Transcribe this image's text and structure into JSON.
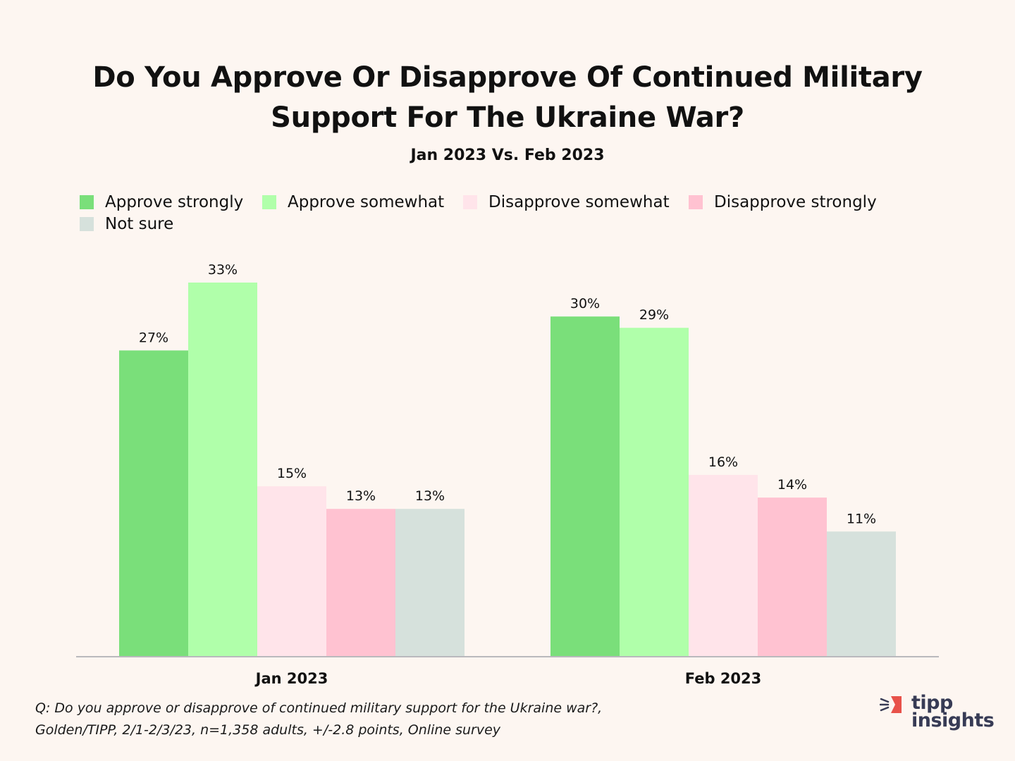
{
  "title_line1": "Do You Approve Or Disapprove Of Continued Military",
  "title_line2": "Support For The Ukraine War?",
  "subtitle": "Jan 2023 Vs. Feb 2023",
  "footnote": {
    "line1": "Q: Do you approve or disapprove of continued military support for the Ukraine war?,",
    "line2": "Golden/TIPP, 2/1-2/3/23, n=1,358 adults, +/-2.8 points, Online survey"
  },
  "logo": {
    "line1": "tipp",
    "line2": "insights",
    "accent": "#e8524a"
  },
  "chart_data": {
    "type": "bar",
    "title": "Do You Approve Or Disapprove Of Continued Military Support For The Ukraine War?",
    "subtitle": "Jan 2023 Vs. Feb 2023",
    "categories": [
      "Jan 2023",
      "Feb 2023"
    ],
    "series": [
      {
        "name": "Approve strongly",
        "color": "#7adf7a",
        "values": [
          27,
          30
        ],
        "labels": [
          "27%",
          "30%"
        ]
      },
      {
        "name": "Approve somewhat",
        "color": "#b0ffaa",
        "values": [
          33,
          29
        ],
        "labels": [
          "33%",
          "29%"
        ]
      },
      {
        "name": "Disapprove somewhat",
        "color": "#ffe4ea",
        "values": [
          15,
          16
        ],
        "labels": [
          "15%",
          "16%"
        ]
      },
      {
        "name": "Disapprove strongly",
        "color": "#ffc2d1",
        "values": [
          13,
          14
        ],
        "labels": [
          "13%",
          "14%"
        ]
      },
      {
        "name": "Not sure",
        "color": "#d6e1dc",
        "values": [
          13,
          11
        ],
        "labels": [
          "13%",
          "11%"
        ]
      }
    ],
    "xlabel": "",
    "ylabel": "",
    "ylim": [
      0,
      33
    ],
    "grid": false,
    "legend": "top-left",
    "axis_color": "#b9b9bd"
  }
}
